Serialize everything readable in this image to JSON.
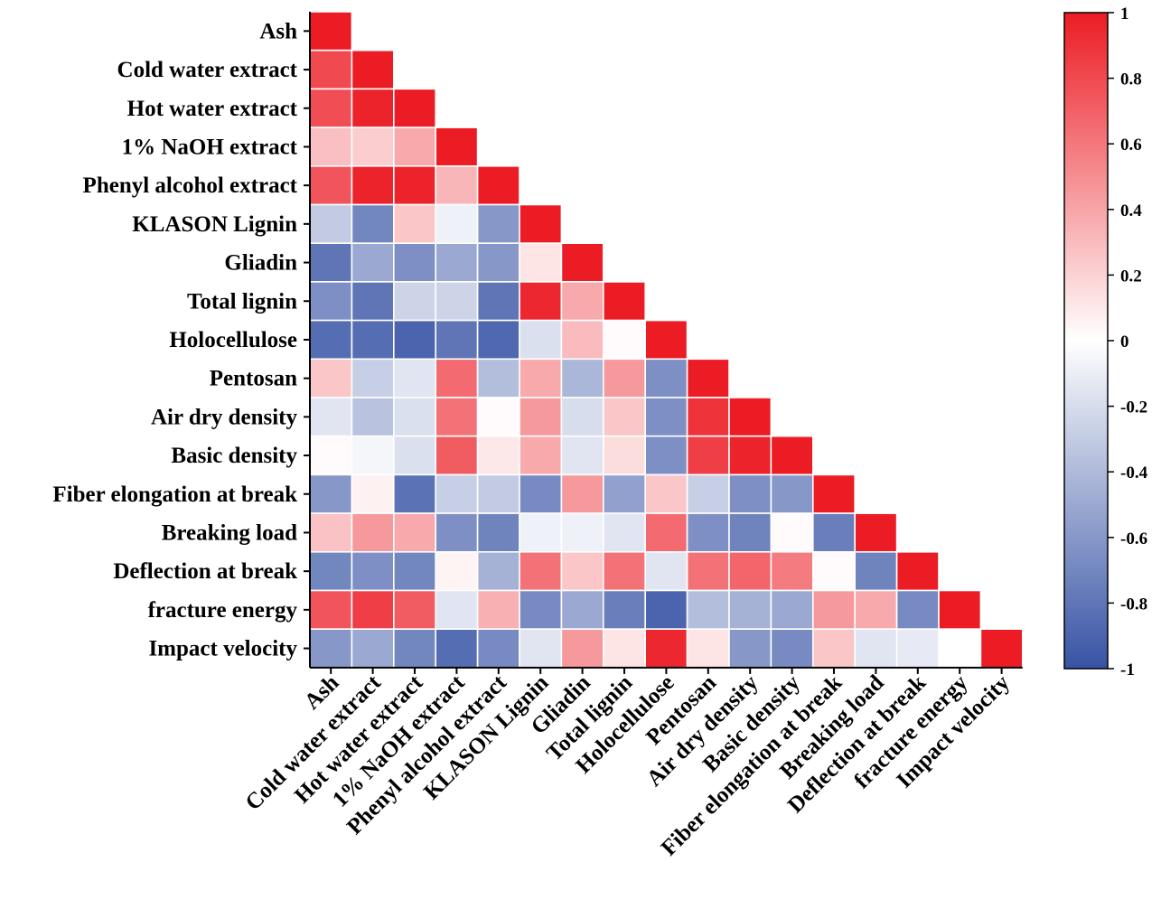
{
  "chart_data": {
    "type": "heatmap",
    "title": "",
    "variables": [
      "Ash",
      "Cold water extract",
      "Hot water extract",
      "1% NaOH extract",
      "Phenyl alcohol extract",
      "KLASON Lignin",
      "Gliadin",
      "Total lignin",
      "Holocellulose",
      "Pentosan",
      "Air dry density",
      "Basic density",
      "Fiber elongation at break",
      "Breaking load",
      "Deflection at break",
      "fracture energy",
      "Impact velocity"
    ],
    "matrix": [
      [
        1
      ],
      [
        0.8,
        1
      ],
      [
        0.78,
        0.97,
        1
      ],
      [
        0.28,
        0.22,
        0.38,
        1
      ],
      [
        0.75,
        0.97,
        0.97,
        0.32,
        1
      ],
      [
        -0.3,
        -0.7,
        0.25,
        -0.08,
        -0.6,
        1
      ],
      [
        -0.8,
        -0.5,
        -0.65,
        -0.5,
        -0.6,
        0.12,
        1
      ],
      [
        -0.65,
        -0.8,
        -0.25,
        -0.25,
        -0.8,
        0.95,
        0.38,
        1
      ],
      [
        -0.85,
        -0.85,
        -0.9,
        -0.8,
        -0.88,
        -0.18,
        0.3,
        0.02,
        1
      ],
      [
        0.25,
        -0.28,
        -0.15,
        0.65,
        -0.38,
        0.38,
        -0.42,
        0.45,
        -0.65,
        1
      ],
      [
        -0.15,
        -0.35,
        -0.18,
        0.62,
        0.02,
        0.45,
        -0.2,
        0.25,
        -0.65,
        0.9,
        1
      ],
      [
        0.02,
        -0.05,
        -0.18,
        0.72,
        0.1,
        0.38,
        -0.15,
        0.15,
        -0.65,
        0.85,
        0.97,
        1
      ],
      [
        -0.6,
        0.06,
        -0.82,
        -0.28,
        -0.3,
        -0.68,
        0.45,
        -0.55,
        0.25,
        -0.28,
        -0.65,
        -0.6,
        1
      ],
      [
        0.27,
        0.45,
        0.38,
        -0.65,
        -0.72,
        -0.08,
        -0.08,
        -0.15,
        0.65,
        -0.65,
        -0.72,
        0.02,
        -0.75,
        1
      ],
      [
        -0.7,
        -0.65,
        -0.7,
        0.05,
        -0.45,
        0.62,
        0.25,
        0.62,
        -0.15,
        0.62,
        0.68,
        0.58,
        0.02,
        -0.72,
        1
      ],
      [
        0.75,
        0.85,
        0.72,
        -0.15,
        0.35,
        -0.68,
        -0.5,
        -0.75,
        -0.9,
        -0.38,
        -0.45,
        -0.5,
        0.45,
        0.38,
        -0.68,
        1
      ],
      [
        -0.6,
        -0.5,
        -0.7,
        -0.85,
        -0.68,
        -0.15,
        0.45,
        0.12,
        0.95,
        0.12,
        -0.6,
        -0.68,
        0.25,
        -0.15,
        -0.12,
        0.0,
        1
      ]
    ],
    "colorbar": {
      "range": [
        -1,
        1
      ],
      "ticks": [
        "1",
        "0.8",
        "0.6",
        "0.4",
        "0.2",
        "0",
        "-0.2",
        "-0.4",
        "-0.6",
        "-0.8",
        "-1"
      ],
      "colors": {
        "negative": "#3753A4",
        "zero": "#FFFFFF",
        "positive": "#EC1C24"
      }
    },
    "grid": true,
    "legend_position": "right"
  }
}
